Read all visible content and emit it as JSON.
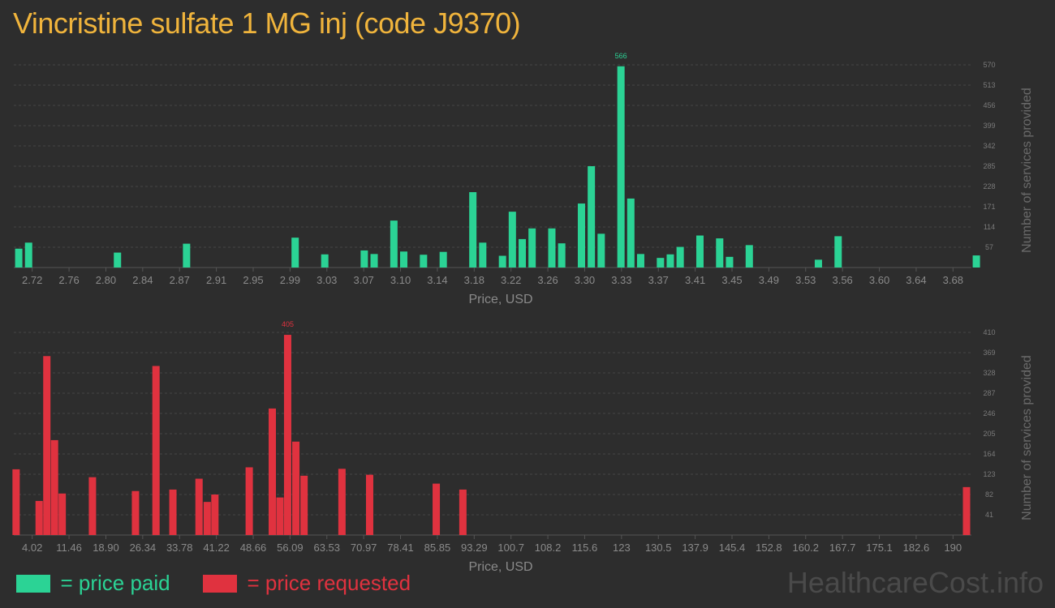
{
  "title": "Vincristine sulfate 1 MG inj (code J9370)",
  "watermark": "HealthcareCost.info",
  "legend": [
    {
      "label": "= price paid",
      "color": "#2bd395"
    },
    {
      "label": "= price requested",
      "color": "#e0323f"
    }
  ],
  "chart_data": [
    {
      "type": "bar",
      "color": "#2bd395",
      "xlabel": "Price, USD",
      "ylabel": "Number of services provided",
      "ylim": [
        0,
        570
      ],
      "yticks": [
        57,
        114,
        171,
        228,
        285,
        342,
        399,
        456,
        513,
        570
      ],
      "xlim": [
        2.715,
        3.685
      ],
      "xticks": [
        "2.72",
        "2.76",
        "2.80",
        "2.84",
        "2.87",
        "2.91",
        "2.95",
        "2.99",
        "3.03",
        "3.07",
        "3.10",
        "3.14",
        "3.18",
        "3.22",
        "3.26",
        "3.30",
        "3.33",
        "3.37",
        "3.41",
        "3.45",
        "3.49",
        "3.53",
        "3.56",
        "3.60",
        "3.64",
        "3.68"
      ],
      "peak_label": "566",
      "bars": [
        {
          "x": 2.72,
          "y": 53
        },
        {
          "x": 2.73,
          "y": 70
        },
        {
          "x": 2.82,
          "y": 42
        },
        {
          "x": 2.89,
          "y": 67
        },
        {
          "x": 3.0,
          "y": 84
        },
        {
          "x": 3.03,
          "y": 37
        },
        {
          "x": 3.07,
          "y": 48
        },
        {
          "x": 3.08,
          "y": 38
        },
        {
          "x": 3.1,
          "y": 132
        },
        {
          "x": 3.11,
          "y": 45
        },
        {
          "x": 3.13,
          "y": 36
        },
        {
          "x": 3.15,
          "y": 44
        },
        {
          "x": 3.18,
          "y": 212
        },
        {
          "x": 3.19,
          "y": 70
        },
        {
          "x": 3.21,
          "y": 33
        },
        {
          "x": 3.22,
          "y": 157
        },
        {
          "x": 3.23,
          "y": 80
        },
        {
          "x": 3.24,
          "y": 110
        },
        {
          "x": 3.26,
          "y": 110
        },
        {
          "x": 3.27,
          "y": 68
        },
        {
          "x": 3.29,
          "y": 180
        },
        {
          "x": 3.3,
          "y": 285
        },
        {
          "x": 3.31,
          "y": 95
        },
        {
          "x": 3.33,
          "y": 566
        },
        {
          "x": 3.34,
          "y": 194
        },
        {
          "x": 3.35,
          "y": 38
        },
        {
          "x": 3.37,
          "y": 27
        },
        {
          "x": 3.38,
          "y": 37
        },
        {
          "x": 3.39,
          "y": 58
        },
        {
          "x": 3.41,
          "y": 90
        },
        {
          "x": 3.43,
          "y": 82
        },
        {
          "x": 3.44,
          "y": 30
        },
        {
          "x": 3.46,
          "y": 63
        },
        {
          "x": 3.53,
          "y": 22
        },
        {
          "x": 3.55,
          "y": 88
        },
        {
          "x": 3.69,
          "y": 34
        }
      ]
    },
    {
      "type": "bar",
      "color": "#e0323f",
      "xlabel": "Price, USD",
      "ylabel": "Number of services provided",
      "ylim": [
        0,
        410
      ],
      "yticks": [
        41,
        82,
        123,
        164,
        205,
        246,
        287,
        328,
        369,
        410
      ],
      "xlim": [
        3.55,
        190.45
      ],
      "xticks": [
        "4.02",
        "11.46",
        "18.90",
        "26.34",
        "33.78",
        "41.22",
        "48.66",
        "56.09",
        "63.53",
        "70.97",
        "78.41",
        "85.85",
        "93.29",
        "100.7",
        "108.2",
        "115.6",
        "123",
        "130.5",
        "137.9",
        "145.4",
        "152.8",
        "160.2",
        "167.7",
        "175.1",
        "182.6",
        "190"
      ],
      "peak_label": "405",
      "bars": [
        {
          "x": 4.0,
          "y": 133
        },
        {
          "x": 8.5,
          "y": 69
        },
        {
          "x": 10.0,
          "y": 362
        },
        {
          "x": 11.5,
          "y": 192
        },
        {
          "x": 13.0,
          "y": 84
        },
        {
          "x": 18.9,
          "y": 117
        },
        {
          "x": 27.3,
          "y": 89
        },
        {
          "x": 31.3,
          "y": 342
        },
        {
          "x": 34.6,
          "y": 92
        },
        {
          "x": 39.7,
          "y": 114
        },
        {
          "x": 41.3,
          "y": 67
        },
        {
          "x": 42.8,
          "y": 82
        },
        {
          "x": 49.5,
          "y": 137
        },
        {
          "x": 54.0,
          "y": 256
        },
        {
          "x": 55.5,
          "y": 76
        },
        {
          "x": 57.0,
          "y": 405
        },
        {
          "x": 58.6,
          "y": 189
        },
        {
          "x": 60.2,
          "y": 120
        },
        {
          "x": 67.6,
          "y": 134
        },
        {
          "x": 73.0,
          "y": 122
        },
        {
          "x": 86.0,
          "y": 104
        },
        {
          "x": 91.2,
          "y": 92
        },
        {
          "x": 189.5,
          "y": 97
        }
      ]
    }
  ]
}
